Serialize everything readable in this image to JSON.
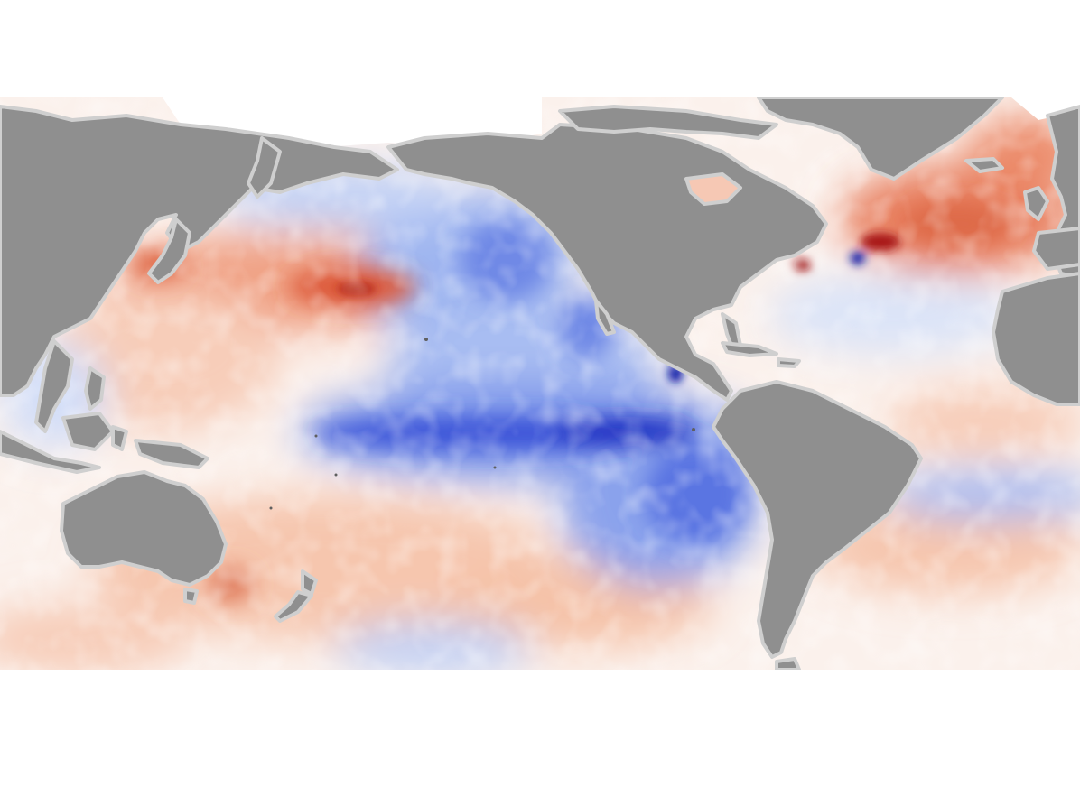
{
  "map": {
    "type": "sea-surface-temperature-anomaly",
    "projection": "equirectangular",
    "center": "Pacific Ocean",
    "colors": {
      "land": "#8f8f8f",
      "coast_halo": "#cfcfcf",
      "sea_ice": "#ffffff",
      "warm_strong": "#8b0000",
      "warm_mid": "#d9472b",
      "warm_light": "#f4b49a",
      "neutral": "#ffffff",
      "cool_light": "#b4c6f2",
      "cool_mid": "#4a66e0",
      "cool_strong": "#0b1aa8"
    },
    "regions": [
      {
        "name": "eastern-equatorial-pacific-cold-tongue",
        "anomaly": "cool",
        "intensity": "strong"
      },
      {
        "name": "north-pacific-warm-blob",
        "anomaly": "warm",
        "intensity": "moderate"
      },
      {
        "name": "northeast-pacific",
        "anomaly": "cool",
        "intensity": "moderate"
      },
      {
        "name": "north-atlantic",
        "anomaly": "warm",
        "intensity": "moderate"
      },
      {
        "name": "gulf-stream",
        "anomaly": "mixed",
        "intensity": "strong"
      },
      {
        "name": "south-pacific",
        "anomaly": "warm",
        "intensity": "light"
      },
      {
        "name": "south-atlantic",
        "anomaly": "cool",
        "intensity": "light"
      }
    ],
    "landmasses": [
      "asia",
      "north-america",
      "greenland",
      "south-america",
      "australia",
      "africa",
      "europe",
      "new-zealand",
      "japan",
      "indonesia",
      "arctic-islands"
    ]
  }
}
